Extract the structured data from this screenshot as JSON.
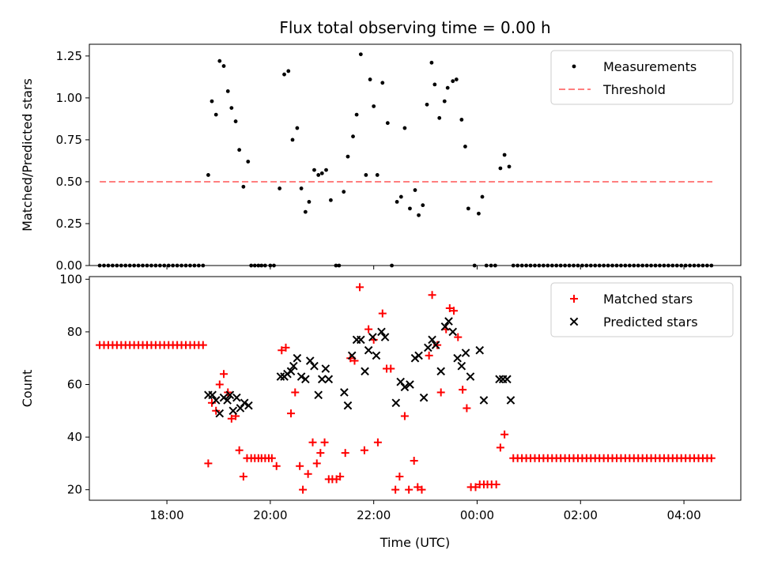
{
  "chart_data": {
    "title": "Flux total observing time = 0.00 h",
    "xlabel": "Time (UTC)",
    "xlim": [
      16.5,
      29.1
    ],
    "xticks": [
      {
        "value": 18,
        "label": "18:00"
      },
      {
        "value": 20,
        "label": "20:00"
      },
      {
        "value": 22,
        "label": "22:00"
      },
      {
        "value": 24,
        "label": "00:00"
      },
      {
        "value": 26,
        "label": "02:00"
      },
      {
        "value": 28,
        "label": "04:00"
      }
    ],
    "panels": [
      {
        "type": "scatter",
        "ylabel": "Matched/Predicted stars",
        "ylim": [
          0,
          1.32
        ],
        "yticks": [
          {
            "value": 0,
            "label": "0.00"
          },
          {
            "value": 0.25,
            "label": "0.25"
          },
          {
            "value": 0.5,
            "label": "0.50"
          },
          {
            "value": 0.75,
            "label": "0.75"
          },
          {
            "value": 1.0,
            "label": "1.00"
          },
          {
            "value": 1.25,
            "label": "1.25"
          }
        ],
        "legend": [
          {
            "label": "Measurements",
            "marker": "dot",
            "color": "#000000"
          },
          {
            "label": "Threshold",
            "marker": "dash",
            "color": "#ff7f7f"
          }
        ],
        "threshold": {
          "value": 0.5,
          "x_start": 16.7,
          "x_end": 28.55,
          "color": "#ff7f7f"
        },
        "zero_run_1": {
          "start": 16.7,
          "end": 18.75,
          "step": 0.0833
        },
        "zero_run_2": {
          "start": 24.7,
          "end": 28.55,
          "step": 0.0833
        },
        "series": [
          {
            "name": "Measurements",
            "color": "#000000",
            "points": [
              [
                18.8,
                0.54
              ],
              [
                18.87,
                0.98
              ],
              [
                18.95,
                0.9
              ],
              [
                19.02,
                1.22
              ],
              [
                19.1,
                1.19
              ],
              [
                19.18,
                1.04
              ],
              [
                19.25,
                0.94
              ],
              [
                19.33,
                0.86
              ],
              [
                19.4,
                0.69
              ],
              [
                19.48,
                0.47
              ],
              [
                19.57,
                0.62
              ],
              [
                19.63,
                0
              ],
              [
                19.7,
                0
              ],
              [
                19.77,
                0
              ],
              [
                19.83,
                0
              ],
              [
                19.9,
                0
              ],
              [
                20.0,
                0
              ],
              [
                20.07,
                0
              ],
              [
                20.18,
                0.46
              ],
              [
                20.27,
                1.14
              ],
              [
                20.35,
                1.16
              ],
              [
                20.43,
                0.75
              ],
              [
                20.52,
                0.82
              ],
              [
                20.6,
                0.46
              ],
              [
                20.68,
                0.32
              ],
              [
                20.75,
                0.38
              ],
              [
                20.85,
                0.57
              ],
              [
                20.93,
                0.54
              ],
              [
                21.0,
                0.55
              ],
              [
                21.08,
                0.57
              ],
              [
                21.17,
                0.39
              ],
              [
                21.27,
                0
              ],
              [
                21.33,
                0
              ],
              [
                21.42,
                0.44
              ],
              [
                21.5,
                0.65
              ],
              [
                21.6,
                0.77
              ],
              [
                21.67,
                0.9
              ],
              [
                21.75,
                1.26
              ],
              [
                21.85,
                0.54
              ],
              [
                21.93,
                1.11
              ],
              [
                22.0,
                0.95
              ],
              [
                22.07,
                0.54
              ],
              [
                22.17,
                1.09
              ],
              [
                22.27,
                0.85
              ],
              [
                22.35,
                0
              ],
              [
                22.45,
                0.38
              ],
              [
                22.53,
                0.41
              ],
              [
                22.6,
                0.82
              ],
              [
                22.7,
                0.34
              ],
              [
                22.8,
                0.45
              ],
              [
                22.87,
                0.3
              ],
              [
                22.95,
                0.36
              ],
              [
                23.03,
                0.96
              ],
              [
                23.12,
                1.21
              ],
              [
                23.18,
                1.08
              ],
              [
                23.27,
                0.88
              ],
              [
                23.37,
                0.98
              ],
              [
                23.43,
                1.06
              ],
              [
                23.53,
                1.1
              ],
              [
                23.6,
                1.11
              ],
              [
                23.7,
                0.87
              ],
              [
                23.77,
                0.71
              ],
              [
                23.83,
                0.34
              ],
              [
                23.95,
                0
              ],
              [
                24.03,
                0.31
              ],
              [
                24.1,
                0.41
              ],
              [
                24.18,
                0
              ],
              [
                24.27,
                0
              ],
              [
                24.35,
                0
              ],
              [
                24.45,
                0.58
              ],
              [
                24.53,
                0.66
              ],
              [
                24.62,
                0.59
              ]
            ]
          }
        ]
      },
      {
        "type": "scatter",
        "ylabel": "Count",
        "ylim": [
          16,
          101
        ],
        "yticks": [
          {
            "value": 20,
            "label": "20"
          },
          {
            "value": 40,
            "label": "40"
          },
          {
            "value": 60,
            "label": "60"
          },
          {
            "value": 80,
            "label": "80"
          },
          {
            "value": 100,
            "label": "100"
          }
        ],
        "legend": [
          {
            "label": "Matched stars",
            "marker": "plus",
            "color": "#ff0000"
          },
          {
            "label": "Predicted stars",
            "marker": "x",
            "color": "#000000"
          }
        ],
        "matched_run_1": {
          "start": 16.7,
          "end": 18.75,
          "step": 0.0833,
          "value": 75
        },
        "matched_run_2": {
          "start": 24.7,
          "end": 28.55,
          "step": 0.0833,
          "value": 32
        },
        "series": [
          {
            "name": "Matched stars",
            "marker": "plus",
            "color": "#ff0000",
            "points": [
              [
                18.8,
                30
              ],
              [
                18.87,
                53
              ],
              [
                18.95,
                50
              ],
              [
                19.02,
                60
              ],
              [
                19.1,
                64
              ],
              [
                19.18,
                57
              ],
              [
                19.25,
                47
              ],
              [
                19.33,
                48
              ],
              [
                19.4,
                35
              ],
              [
                19.48,
                25
              ],
              [
                19.55,
                32
              ],
              [
                19.63,
                32
              ],
              [
                19.7,
                32
              ],
              [
                19.77,
                32
              ],
              [
                19.83,
                32
              ],
              [
                19.9,
                32
              ],
              [
                19.97,
                32
              ],
              [
                20.03,
                32
              ],
              [
                20.12,
                29
              ],
              [
                20.22,
                73
              ],
              [
                20.3,
                74
              ],
              [
                20.4,
                49
              ],
              [
                20.48,
                57
              ],
              [
                20.57,
                29
              ],
              [
                20.63,
                20
              ],
              [
                20.73,
                26
              ],
              [
                20.82,
                38
              ],
              [
                20.9,
                30
              ],
              [
                20.97,
                34
              ],
              [
                21.05,
                38
              ],
              [
                21.13,
                24
              ],
              [
                21.2,
                24
              ],
              [
                21.28,
                24
              ],
              [
                21.35,
                25
              ],
              [
                21.45,
                34
              ],
              [
                21.55,
                70
              ],
              [
                21.63,
                69
              ],
              [
                21.73,
                97
              ],
              [
                21.82,
                35
              ],
              [
                21.9,
                81
              ],
              [
                22.0,
                77
              ],
              [
                22.08,
                38
              ],
              [
                22.17,
                87
              ],
              [
                22.25,
                66
              ],
              [
                22.33,
                66
              ],
              [
                22.42,
                20
              ],
              [
                22.5,
                25
              ],
              [
                22.6,
                48
              ],
              [
                22.68,
                20
              ],
              [
                22.78,
                31
              ],
              [
                22.85,
                21
              ],
              [
                22.93,
                20
              ],
              [
                23.07,
                71
              ],
              [
                23.13,
                94
              ],
              [
                23.23,
                75
              ],
              [
                23.3,
                57
              ],
              [
                23.4,
                81
              ],
              [
                23.47,
                89
              ],
              [
                23.55,
                88
              ],
              [
                23.63,
                78
              ],
              [
                23.72,
                58
              ],
              [
                23.8,
                51
              ],
              [
                23.88,
                21
              ],
              [
                23.97,
                21
              ],
              [
                24.05,
                22
              ],
              [
                24.13,
                22
              ],
              [
                24.2,
                22
              ],
              [
                24.28,
                22
              ],
              [
                24.37,
                22
              ],
              [
                24.45,
                36
              ],
              [
                24.53,
                41
              ]
            ]
          },
          {
            "name": "Predicted stars",
            "marker": "x",
            "color": "#000000",
            "points": [
              [
                18.8,
                56
              ],
              [
                18.88,
                56
              ],
              [
                18.95,
                54
              ],
              [
                19.02,
                49
              ],
              [
                19.1,
                55
              ],
              [
                19.17,
                54
              ],
              [
                19.22,
                56
              ],
              [
                19.28,
                50
              ],
              [
                19.35,
                55
              ],
              [
                19.42,
                51
              ],
              [
                19.5,
                53
              ],
              [
                19.58,
                52
              ],
              [
                20.2,
                63
              ],
              [
                20.27,
                63
              ],
              [
                20.33,
                64
              ],
              [
                20.4,
                65
              ],
              [
                20.45,
                67
              ],
              [
                20.52,
                70
              ],
              [
                20.6,
                63
              ],
              [
                20.68,
                62
              ],
              [
                20.77,
                69
              ],
              [
                20.85,
                67
              ],
              [
                20.93,
                56
              ],
              [
                21.0,
                62
              ],
              [
                21.07,
                66
              ],
              [
                21.13,
                62
              ],
              [
                21.43,
                57
              ],
              [
                21.5,
                52
              ],
              [
                21.58,
                71
              ],
              [
                21.67,
                77
              ],
              [
                21.75,
                77
              ],
              [
                21.83,
                65
              ],
              [
                21.9,
                73
              ],
              [
                21.98,
                78
              ],
              [
                22.05,
                71
              ],
              [
                22.15,
                80
              ],
              [
                22.22,
                78
              ],
              [
                22.43,
                53
              ],
              [
                22.52,
                61
              ],
              [
                22.6,
                59
              ],
              [
                22.7,
                60
              ],
              [
                22.8,
                70
              ],
              [
                22.87,
                71
              ],
              [
                22.97,
                55
              ],
              [
                23.05,
                74
              ],
              [
                23.13,
                77
              ],
              [
                23.2,
                75
              ],
              [
                23.3,
                65
              ],
              [
                23.38,
                82
              ],
              [
                23.45,
                84
              ],
              [
                23.53,
                80
              ],
              [
                23.62,
                70
              ],
              [
                23.7,
                67
              ],
              [
                23.78,
                72
              ],
              [
                23.87,
                63
              ],
              [
                24.05,
                73
              ],
              [
                24.13,
                54
              ],
              [
                24.43,
                62
              ],
              [
                24.5,
                62
              ],
              [
                24.58,
                62
              ],
              [
                24.65,
                54
              ]
            ]
          }
        ]
      }
    ]
  }
}
